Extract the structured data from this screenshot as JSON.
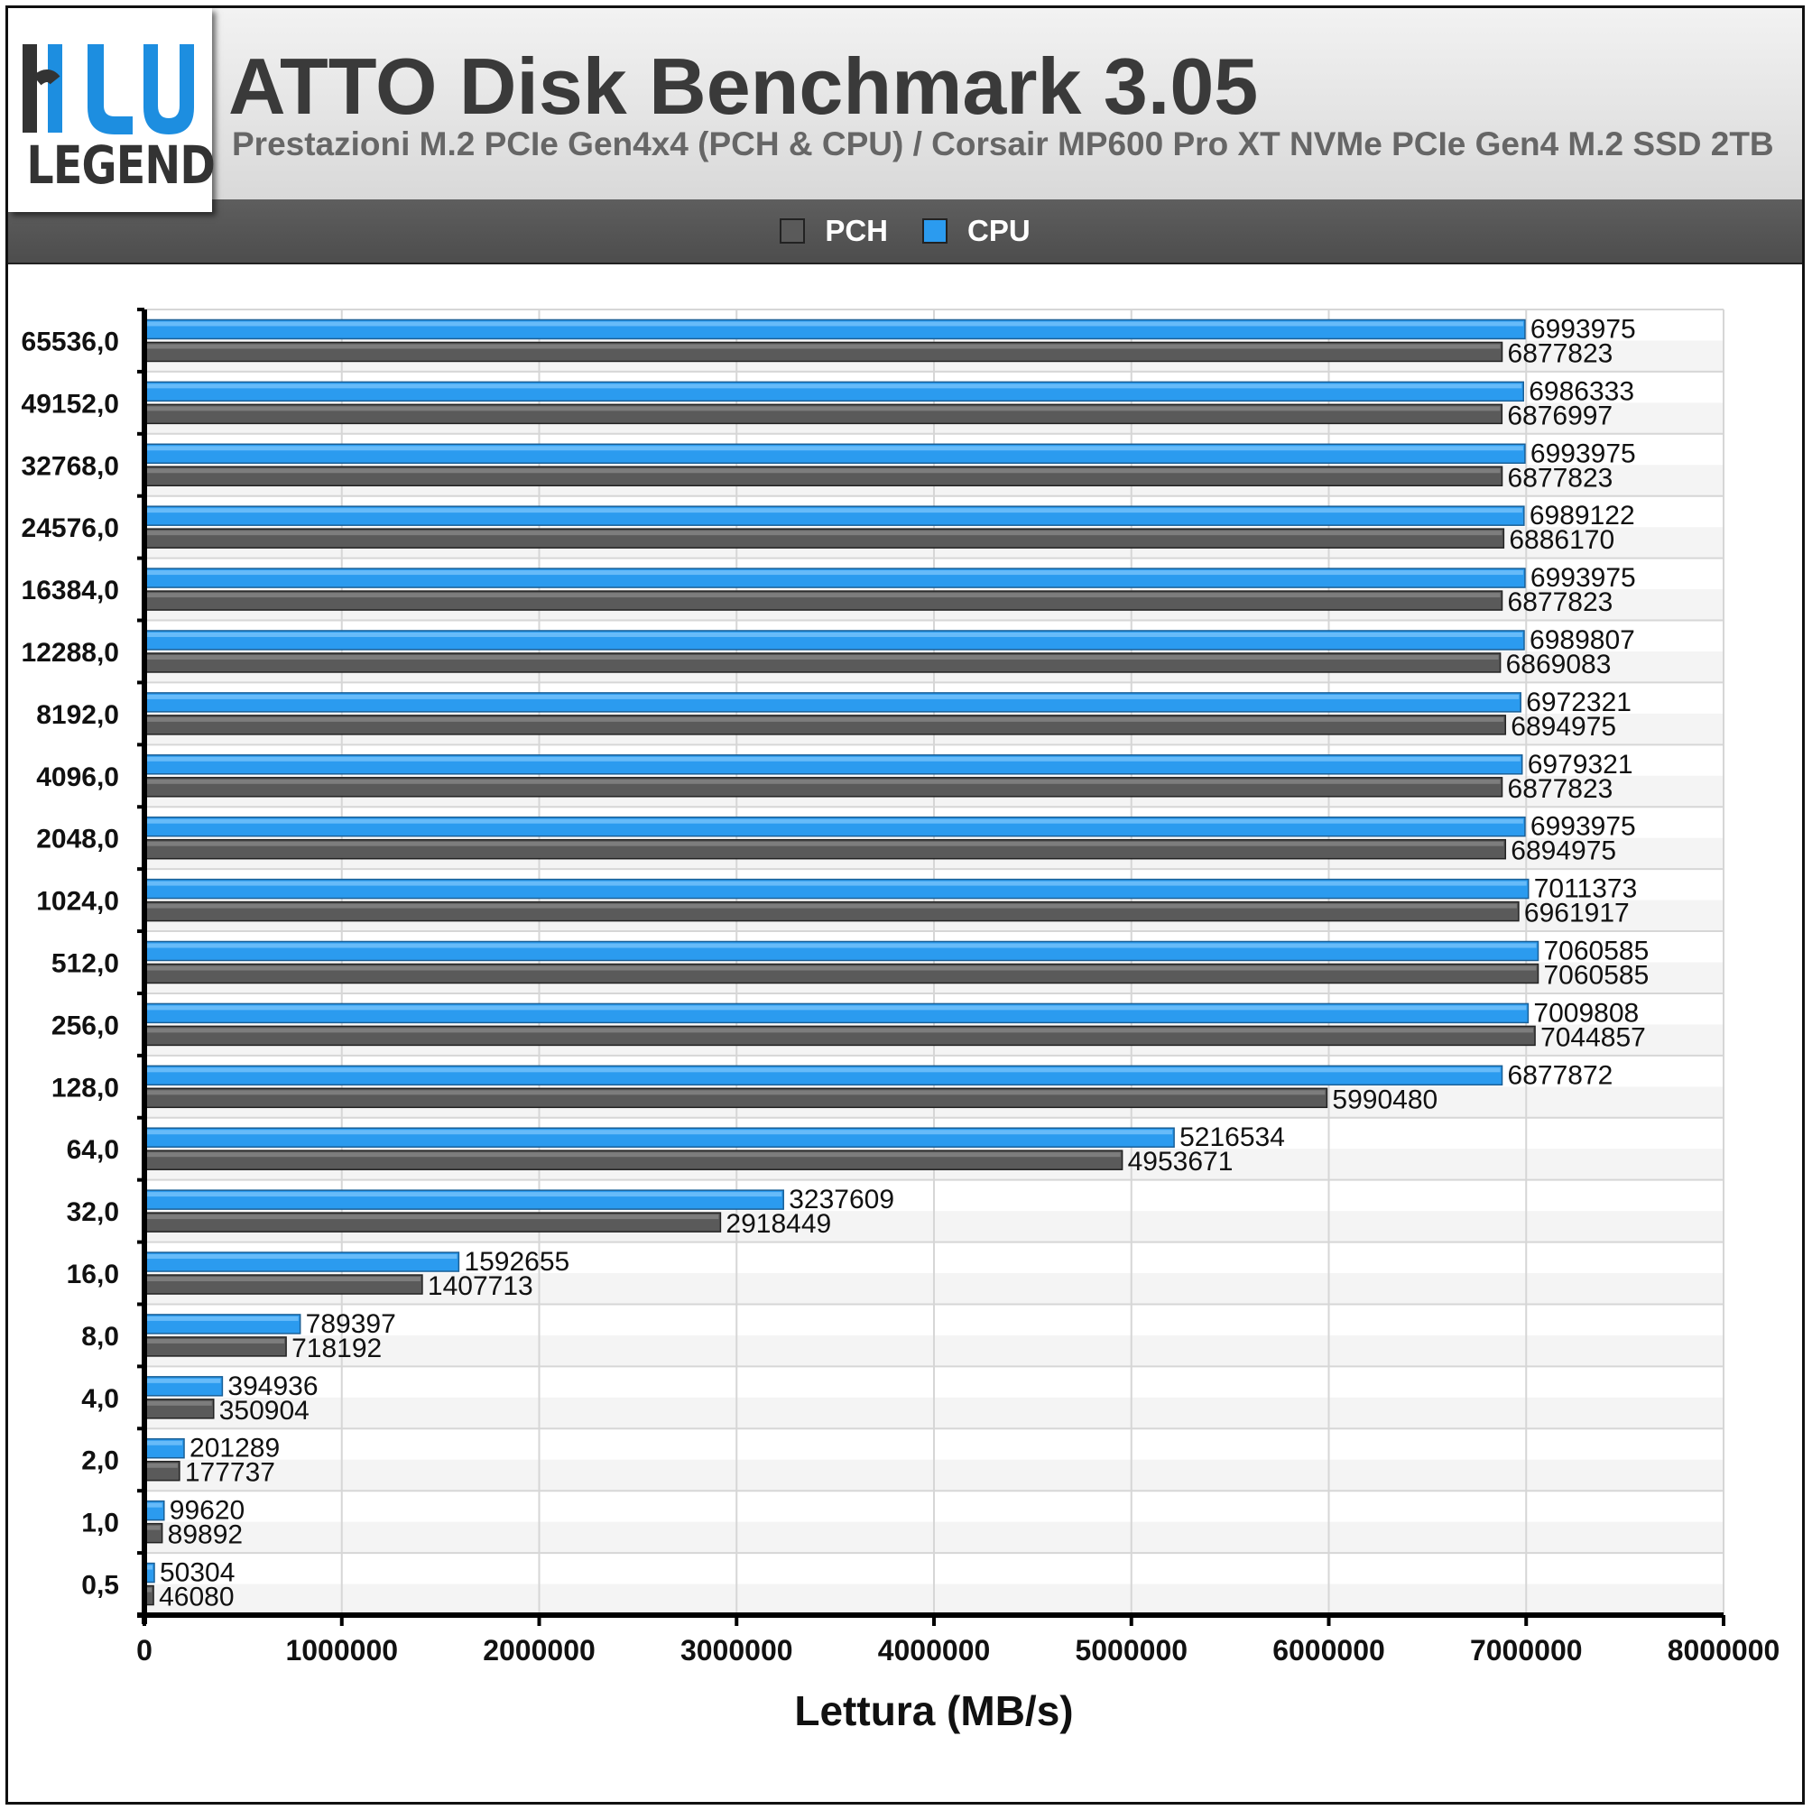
{
  "header": {
    "logo_text": "LEGEND",
    "title": "ATTO Disk Benchmark 3.05",
    "subtitle": "Prestazioni M.2 PCIe Gen4x4 (PCH & CPU) / Corsair MP600 Pro XT NVMe PCIe Gen4 M.2 SSD 2TB"
  },
  "colors": {
    "pch": "#5a5a5a",
    "cpu": "#2b9bef",
    "logo_blue": "#1d8ee0"
  },
  "chart_data": {
    "type": "bar",
    "orientation": "horizontal",
    "title": "ATTO Disk Benchmark 3.05",
    "subtitle": "Prestazioni M.2 PCIe Gen4x4 (PCH & CPU) / Corsair MP600 Pro XT NVMe PCIe Gen4 M.2 SSD 2TB",
    "xlabel": "Lettura (MB/s)",
    "ylabel": "",
    "xlim": [
      0,
      8000000
    ],
    "xticks": [
      "0",
      "1000000",
      "2000000",
      "3000000",
      "4000000",
      "5000000",
      "6000000",
      "7000000",
      "8000000"
    ],
    "grid": true,
    "legend_position": "top-center",
    "categories": [
      "65536,0",
      "49152,0",
      "32768,0",
      "24576,0",
      "16384,0",
      "12288,0",
      "8192,0",
      "4096,0",
      "2048,0",
      "1024,0",
      "512,0",
      "256,0",
      "128,0",
      "64,0",
      "32,0",
      "16,0",
      "8,0",
      "4,0",
      "2,0",
      "1,0",
      "0,5"
    ],
    "series": [
      {
        "name": "CPU",
        "color": "#2b9bef",
        "values": [
          6993975,
          6986333,
          6993975,
          6989122,
          6993975,
          6989807,
          6972321,
          6979321,
          6993975,
          7011373,
          7060585,
          7009808,
          6877872,
          5216534,
          3237609,
          1592655,
          789397,
          394936,
          201289,
          99620,
          50304
        ]
      },
      {
        "name": "PCH",
        "color": "#5a5a5a",
        "values": [
          6877823,
          6876997,
          6877823,
          6886170,
          6877823,
          6869083,
          6894975,
          6877823,
          6894975,
          6961917,
          7060585,
          7044857,
          5990480,
          4953671,
          2918449,
          1407713,
          718192,
          350904,
          177737,
          89892,
          46080
        ]
      }
    ]
  }
}
